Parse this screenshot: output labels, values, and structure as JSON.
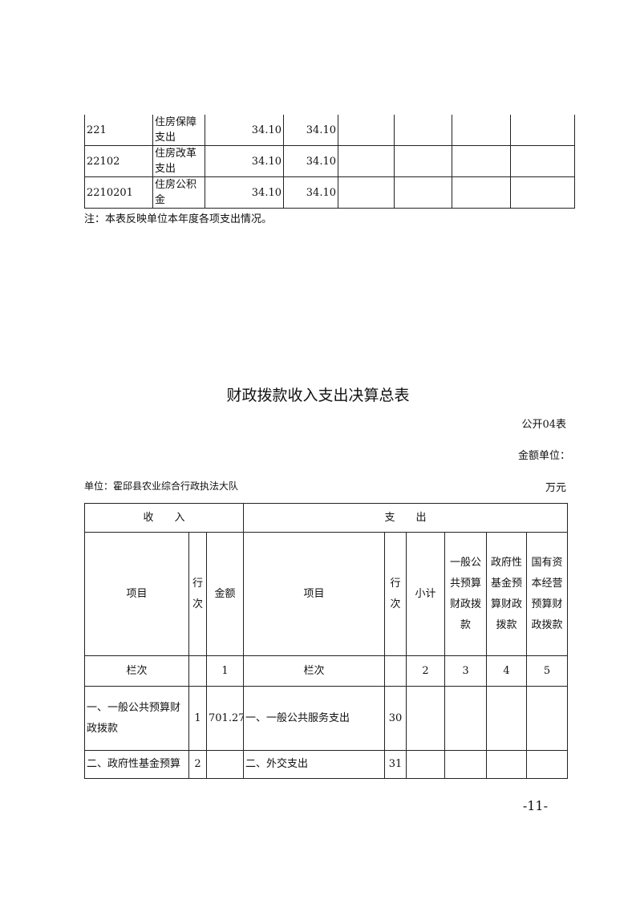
{
  "top_table": {
    "rows": [
      {
        "code": "221",
        "name": "住房保障支出",
        "v1": "34.10",
        "v2": "34.10"
      },
      {
        "code": "22102",
        "name": "住房改革支出",
        "v1": "34.10",
        "v2": "34.10"
      },
      {
        "code": "2210201",
        "name": "住房公积金",
        "v1": "34.10",
        "v2": "34.10"
      }
    ],
    "note": "注：本表反映单位本年度各项支出情况。"
  },
  "title": "财政拨款收入支出决算总表",
  "form_no": "公开04表",
  "unit_label": "金额单位：",
  "unit_value": "万元",
  "org": "单位：霍邱县农业综合行政执法大队",
  "main_table": {
    "income_header": "收　　入",
    "expense_header": "支　　出",
    "cols": {
      "item": "项目",
      "line": "行次",
      "amount": "金额",
      "item2": "项目",
      "line2": "行次",
      "subtotal": "小计",
      "general": "一般公共预算财政拨款",
      "fund": "政府性基金预算财政拨款",
      "state": "国有资本经营预算财政拨款"
    },
    "index_row": {
      "label": "栏次",
      "c1": "1",
      "label2": "栏次",
      "c2": "2",
      "c3": "3",
      "c4": "4",
      "c5": "5"
    },
    "rows": [
      {
        "item": "一、一般公共预算财政拨款",
        "line": "1",
        "amount": "701.27",
        "item2": "一、一般公共服务支出",
        "line2": "30"
      },
      {
        "item": "二、政府性基金预算",
        "line": "2",
        "amount": "",
        "item2": "二、外交支出",
        "line2": "31"
      }
    ]
  },
  "page_number": "-11-"
}
